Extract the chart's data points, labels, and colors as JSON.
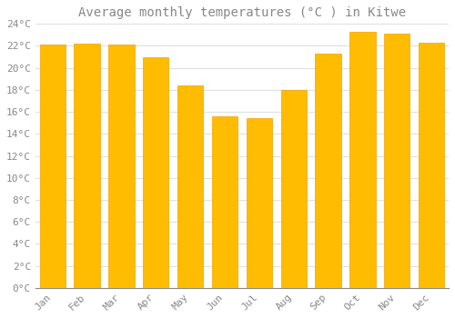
{
  "title": "Average monthly temperatures (°C ) in Kitwe",
  "months": [
    "Jan",
    "Feb",
    "Mar",
    "Apr",
    "May",
    "Jun",
    "Jul",
    "Aug",
    "Sep",
    "Oct",
    "Nov",
    "Dec"
  ],
  "values": [
    22.1,
    22.2,
    22.1,
    21.0,
    18.4,
    15.6,
    15.4,
    18.0,
    21.3,
    23.3,
    23.1,
    22.3
  ],
  "bar_color_face": "#FFBC00",
  "bar_color_edge": "#F5A000",
  "background_color": "#FFFFFF",
  "plot_bg_color": "#FFFFFF",
  "grid_color": "#E0E0E0",
  "text_color": "#888888",
  "ylim": [
    0,
    24
  ],
  "ytick_step": 2,
  "title_fontsize": 10,
  "tick_fontsize": 8,
  "bar_width": 0.75
}
